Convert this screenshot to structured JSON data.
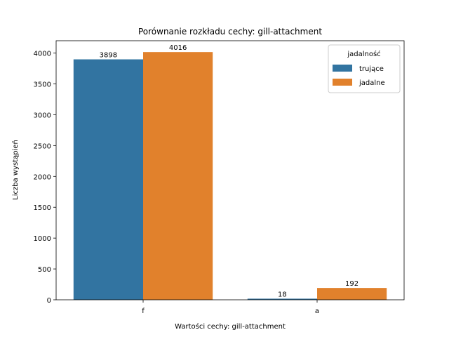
{
  "chart_data": {
    "type": "bar",
    "title": "Porównanie rozkładu cechy: gill-attachment",
    "xlabel": "Wartości cechy: gill-attachment",
    "ylabel": "Liczba wystąpień",
    "categories": [
      "f",
      "a"
    ],
    "series": [
      {
        "name": "trujące",
        "values": [
          3898,
          18
        ],
        "color": "#3274a1"
      },
      {
        "name": "jadalne",
        "values": [
          4016,
          192
        ],
        "color": "#e1812c"
      }
    ],
    "ylim": [
      0,
      4200
    ],
    "yticks": [
      0,
      500,
      1000,
      1500,
      2000,
      2500,
      3000,
      3500,
      4000
    ],
    "legend": {
      "title": "jadalność",
      "position": "top-right"
    },
    "grid": false
  }
}
